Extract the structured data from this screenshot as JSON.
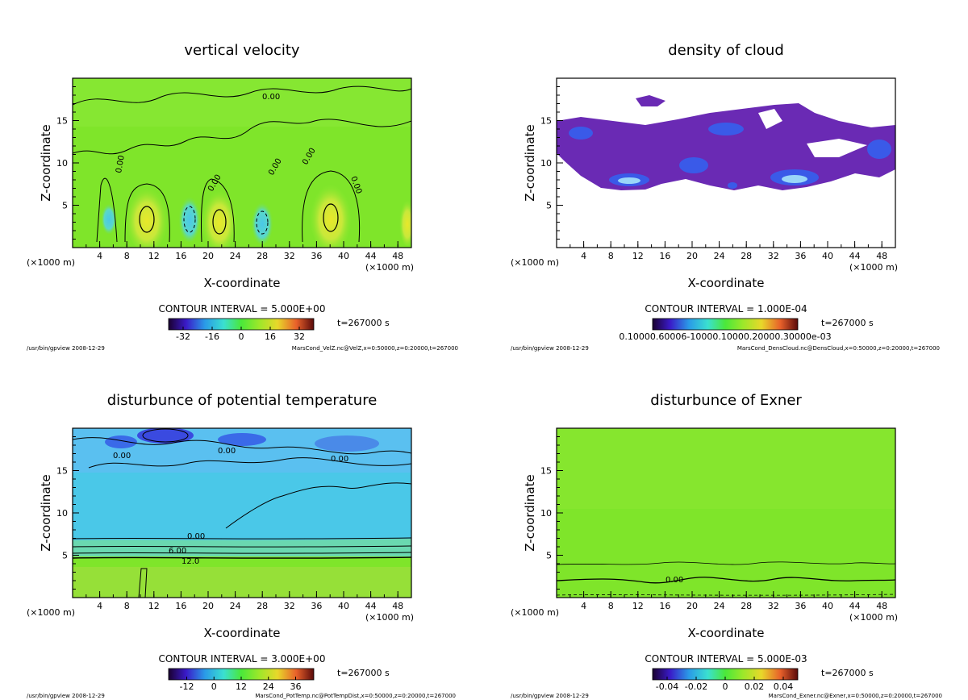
{
  "colors": {
    "field_green": "#7fe52a",
    "field_green_light": "#a8e84a",
    "field_cyan": "#4ac8e8",
    "field_blue": "#3e8fe8",
    "field_yellow": "#e8e82a",
    "cloud_purple": "#6a2ab4",
    "cloud_blue": "#3a5ae8",
    "cloud_light": "#9ad6f8"
  },
  "chart_data": [
    {
      "type": "heatmap",
      "title": "vertical velocity",
      "xlabel": "X-coordinate",
      "ylabel": "Z-coordinate",
      "x_unit": "(×1000 m)",
      "x_ticks": [
        "4",
        "8",
        "12",
        "16",
        "20",
        "24",
        "28",
        "32",
        "36",
        "40",
        "44",
        "48"
      ],
      "y_ticks": [
        "5",
        "10",
        "15"
      ],
      "xlim": [
        0,
        50
      ],
      "ylim": [
        0,
        20
      ],
      "contour_interval_text": "CONTOUR INTERVAL = 5.000E+00",
      "contour_labels": [
        "0.00",
        "0.00",
        "0.00",
        "0.00",
        "0.00",
        "0.00"
      ],
      "colorbar_ticks": [
        "-32",
        "-16",
        "0",
        "16",
        "32"
      ],
      "colorbar_range": [
        -40,
        40
      ],
      "time_text": "t=267000 s",
      "footer_left": "/usr/bin/gpview  2008-12-29",
      "footer_right": "MarsCond_VelZ.nc@VelZ,x=0:50000,z=0:20000,t=267000"
    },
    {
      "type": "heatmap",
      "title": "density of cloud",
      "xlabel": "X-coordinate",
      "ylabel": "Z-coordinate",
      "x_unit": "(×1000 m)",
      "x_ticks": [
        "4",
        "8",
        "12",
        "16",
        "20",
        "24",
        "28",
        "32",
        "36",
        "40",
        "44",
        "48"
      ],
      "y_ticks": [
        "5",
        "10",
        "15"
      ],
      "xlim": [
        0,
        50
      ],
      "ylim": [
        0,
        20
      ],
      "contour_interval_text": "CONTOUR INTERVAL = 1.000E-04",
      "colorbar_ticks_text": "0.10000.60006-10000.10000.20000.30000e-03",
      "time_text": "t=267000 s",
      "footer_left": "/usr/bin/gpview  2008-12-29",
      "footer_right": "MarsCond_DensCloud.nc@DensCloud,x=0:50000,z=0:20000,t=267000"
    },
    {
      "type": "heatmap",
      "title": "disturbunce of potential temperature",
      "xlabel": "X-coordinate",
      "ylabel": "Z-coordinate",
      "x_unit": "(×1000 m)",
      "x_ticks": [
        "4",
        "8",
        "12",
        "16",
        "20",
        "24",
        "28",
        "32",
        "36",
        "40",
        "44",
        "48"
      ],
      "y_ticks": [
        "5",
        "10",
        "15"
      ],
      "xlim": [
        0,
        50
      ],
      "ylim": [
        0,
        20
      ],
      "contour_interval_text": "CONTOUR INTERVAL = 3.000E+00",
      "contour_labels": [
        "0.00",
        "0.00",
        "0.00",
        "0.00",
        "6.00",
        "12.0"
      ],
      "colorbar_ticks": [
        "-12",
        "0",
        "12",
        "24",
        "36"
      ],
      "colorbar_range": [
        -20,
        44
      ],
      "time_text": "t=267000 s",
      "footer_left": "/usr/bin/gpview  2008-12-29",
      "footer_right": "MarsCond_PotTemp.nc@PotTempDist,x=0:50000,z=0:20000,t=267000"
    },
    {
      "type": "heatmap",
      "title": "disturbunce of Exner",
      "xlabel": "X-coordinate",
      "ylabel": "Z-coordinate",
      "x_unit": "(×1000 m)",
      "x_ticks": [
        "4",
        "8",
        "12",
        "16",
        "20",
        "24",
        "28",
        "32",
        "36",
        "40",
        "44",
        "48"
      ],
      "y_ticks": [
        "5",
        "10",
        "15"
      ],
      "xlim": [
        0,
        50
      ],
      "ylim": [
        0,
        20
      ],
      "contour_interval_text": "CONTOUR INTERVAL = 5.000E-03",
      "contour_labels": [
        "0.00"
      ],
      "colorbar_ticks": [
        "-0.04",
        "-0.02",
        "0",
        "0.02",
        "0.04"
      ],
      "colorbar_range": [
        -0.05,
        0.05
      ],
      "time_text": "t=267000 s",
      "footer_left": "/usr/bin/gpview  2008-12-29",
      "footer_right": "MarsCond_Exner.nc@Exner,x=0:50000,z=0:20000,t=267000"
    }
  ]
}
